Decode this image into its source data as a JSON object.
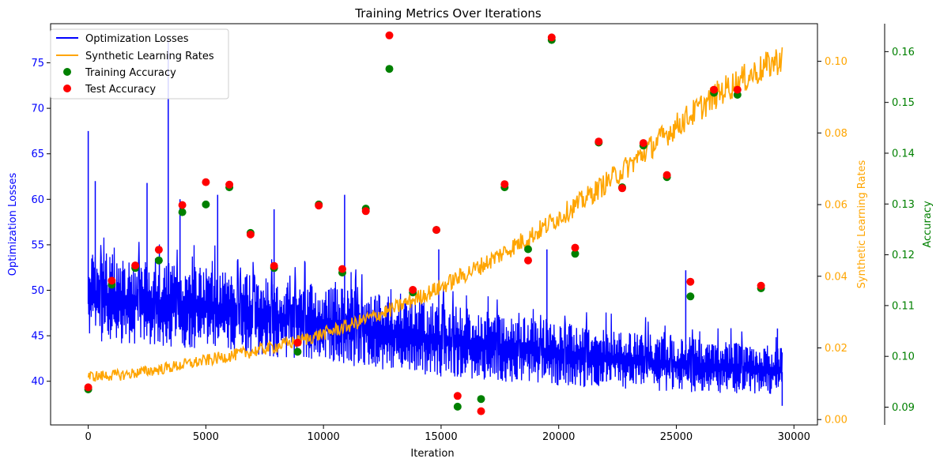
{
  "chart_data": {
    "type": "line",
    "title": "Training Metrics Over Iterations",
    "xlabel": "Iteration",
    "xlim": [
      -1600,
      31000
    ],
    "xticks": [
      0,
      5000,
      10000,
      15000,
      20000,
      25000,
      30000
    ],
    "xtick_labels": [
      "0",
      "5000",
      "10000",
      "15000",
      "20000",
      "25000",
      "30000"
    ],
    "grid": false,
    "legend_position": "top-left",
    "axes": {
      "left": {
        "label": "Optimization Losses",
        "color": "#0000ff",
        "ylim": [
          35.2,
          79.3
        ],
        "ticks": [
          40,
          45,
          50,
          55,
          60,
          65,
          70,
          75
        ],
        "tick_labels": [
          "40",
          "45",
          "50",
          "55",
          "60",
          "65",
          "70",
          "75"
        ]
      },
      "right": {
        "label": "Synthetic Learning Rates",
        "color": "#ffa500",
        "ylim": [
          -0.0015,
          0.1105
        ],
        "ticks": [
          0.0,
          0.02,
          0.04,
          0.06,
          0.08,
          0.1
        ],
        "tick_labels": [
          "0.00",
          "0.02",
          "0.04",
          "0.06",
          "0.08",
          "0.10"
        ]
      },
      "right_outer": {
        "label": "Accuracy",
        "color": "#008000",
        "ylim": [
          0.0865,
          0.1655
        ],
        "ticks": [
          0.09,
          0.1,
          0.11,
          0.12,
          0.13,
          0.14,
          0.15,
          0.16
        ],
        "tick_labels": [
          "0.09",
          "0.10",
          "0.11",
          "0.12",
          "0.13",
          "0.14",
          "0.15",
          "0.16"
        ]
      }
    },
    "series": [
      {
        "name": "Optimization Losses",
        "type": "line",
        "axis": "left",
        "color": "#0000ff",
        "x_max": 29500,
        "trend": {
          "x": [
            0,
            2000,
            5000,
            10000,
            15000,
            20000,
            25000,
            29500
          ],
          "center": [
            48.5,
            47.8,
            47.0,
            45.5,
            44.0,
            42.6,
            41.6,
            41.0
          ],
          "upper": [
            54.5,
            53.5,
            52.5,
            50.5,
            48.5,
            46.5,
            44.8,
            43.8
          ],
          "lower": [
            44.5,
            44.0,
            43.5,
            42.0,
            40.5,
            39.5,
            38.8,
            38.5
          ]
        },
        "spikes": [
          {
            "x": 0,
            "y": 67.5
          },
          {
            "x": 300,
            "y": 62.0
          },
          {
            "x": 2500,
            "y": 61.8
          },
          {
            "x": 3400,
            "y": 77.5
          },
          {
            "x": 3900,
            "y": 60.0
          },
          {
            "x": 5500,
            "y": 60.5
          },
          {
            "x": 7900,
            "y": 58.9
          },
          {
            "x": 10900,
            "y": 60.5
          },
          {
            "x": 14900,
            "y": 54.5
          },
          {
            "x": 19500,
            "y": 54.5
          },
          {
            "x": 25400,
            "y": 52.2
          },
          {
            "x": 29300,
            "y": 45.8
          },
          {
            "x": 29500,
            "y": 37.3
          }
        ]
      },
      {
        "name": "Synthetic Learning Rates",
        "type": "line",
        "axis": "right",
        "color": "#ffa500",
        "trend": {
          "x": [
            0,
            1500,
            3000,
            5000,
            7000,
            9000,
            11000,
            13000,
            15000,
            17000,
            19000,
            21000,
            23000,
            25000,
            27000,
            29500
          ],
          "y": [
            0.012,
            0.0125,
            0.014,
            0.0165,
            0.019,
            0.022,
            0.026,
            0.031,
            0.037,
            0.044,
            0.052,
            0.061,
            0.071,
            0.082,
            0.092,
            0.101
          ]
        }
      },
      {
        "name": "Training Accuracy",
        "type": "scatter",
        "axis": "right_outer",
        "color": "#008000",
        "x": [
          0,
          1000,
          2000,
          3000,
          4000,
          5000,
          6000,
          6900,
          7900,
          8900,
          9800,
          10800,
          11800,
          12800,
          13800,
          14800,
          15700,
          16700,
          17700,
          18700,
          19700,
          20700,
          21700,
          22700,
          23600,
          24600,
          25600,
          26600,
          27600,
          28600
        ],
        "y": [
          0.0935,
          0.1141,
          0.1174,
          0.1189,
          0.1284,
          0.1299,
          0.1333,
          0.1243,
          0.1174,
          0.1009,
          0.1299,
          0.1165,
          0.1291,
          0.1566,
          0.1126,
          0.1249,
          0.0901,
          0.0916,
          0.1333,
          0.1211,
          0.1623,
          0.1202,
          0.1421,
          0.1333,
          0.1415,
          0.1353,
          0.1118,
          0.1519,
          0.1515,
          0.1134
        ]
      },
      {
        "name": "Test Accuracy",
        "type": "scatter",
        "axis": "right_outer",
        "color": "#ff0000",
        "x": [
          0,
          1000,
          2000,
          3000,
          4000,
          5000,
          6000,
          6900,
          7900,
          8900,
          9800,
          10800,
          11800,
          12800,
          13800,
          14800,
          15700,
          16700,
          17700,
          18700,
          19700,
          20700,
          21700,
          22700,
          23600,
          24600,
          25600,
          26600,
          27600,
          28600
        ],
        "y": [
          0.0939,
          0.1149,
          0.1179,
          0.121,
          0.1298,
          0.1343,
          0.1338,
          0.124,
          0.1178,
          0.1027,
          0.1297,
          0.1172,
          0.1286,
          0.1632,
          0.1131,
          0.1249,
          0.0922,
          0.0892,
          0.1339,
          0.1189,
          0.1628,
          0.1214,
          0.1423,
          0.1331,
          0.142,
          0.1357,
          0.1147,
          0.1525,
          0.1525,
          0.1139
        ]
      }
    ]
  }
}
